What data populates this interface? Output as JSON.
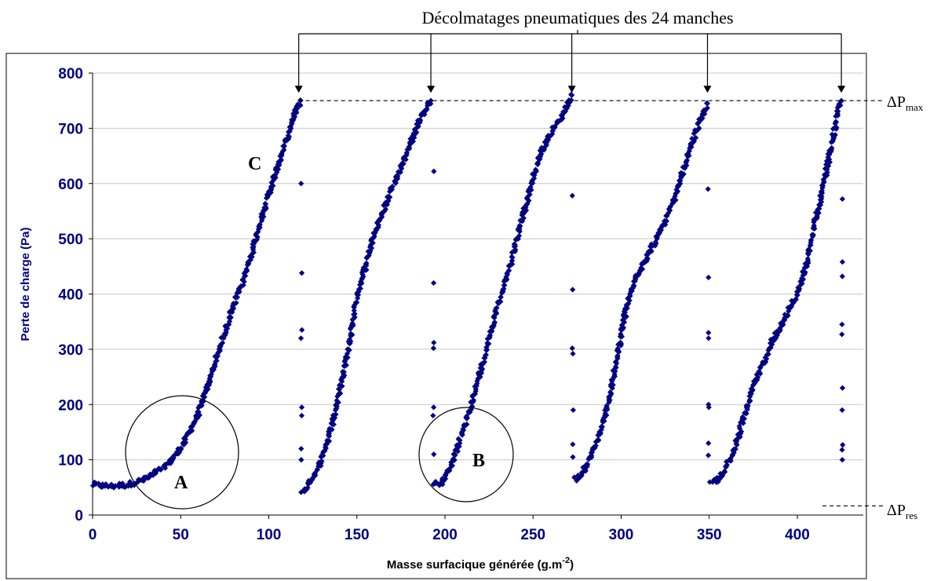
{
  "chart_data": {
    "type": "scatter",
    "title": "Décolmatages pneumatiques des 24 manches",
    "xlabel": "Masse surfacique générée (g.m",
    "xlabel_sup": "-2",
    "xlabel_end": ")",
    "ylabel": "Perte de charge (Pa)",
    "xlim": [
      0,
      440
    ],
    "ylim": [
      0,
      800
    ],
    "x_ticks": [
      0,
      50,
      100,
      150,
      200,
      250,
      300,
      350,
      400
    ],
    "y_ticks": [
      0,
      100,
      200,
      300,
      400,
      500,
      600,
      700,
      800
    ],
    "grid": "horizontal",
    "marker_color": "#000080",
    "dpmax_value": 750,
    "dpres_value": 45,
    "labels": {
      "dpmax": "ΔP",
      "dpmax_sub": "max",
      "dpres": "ΔP",
      "dpres_sub": "res",
      "A": "A",
      "B": "B",
      "C": "C"
    },
    "arrow_x": [
      117,
      192,
      272,
      349,
      425
    ],
    "cycles": [
      {
        "points": [
          [
            0,
            55
          ],
          [
            10,
            52
          ],
          [
            20,
            55
          ],
          [
            30,
            65
          ],
          [
            40,
            85
          ],
          [
            45,
            100
          ],
          [
            50,
            120
          ],
          [
            55,
            150
          ],
          [
            60,
            185
          ],
          [
            65,
            230
          ],
          [
            70,
            280
          ],
          [
            75,
            330
          ],
          [
            80,
            380
          ],
          [
            85,
            420
          ],
          [
            90,
            470
          ],
          [
            95,
            530
          ],
          [
            100,
            580
          ],
          [
            105,
            630
          ],
          [
            110,
            680
          ],
          [
            115,
            730
          ],
          [
            118,
            750
          ]
        ]
      },
      {
        "points": [
          [
            119,
            40
          ],
          [
            121,
            50
          ],
          [
            125,
            70
          ],
          [
            130,
            100
          ],
          [
            135,
            150
          ],
          [
            140,
            220
          ],
          [
            145,
            300
          ],
          [
            148,
            350
          ],
          [
            150,
            400
          ],
          [
            155,
            450
          ],
          [
            160,
            510
          ],
          [
            165,
            550
          ],
          [
            170,
            590
          ],
          [
            175,
            630
          ],
          [
            180,
            670
          ],
          [
            185,
            710
          ],
          [
            190,
            740
          ],
          [
            192,
            750
          ]
        ]
      },
      {
        "points": [
          [
            194,
            55
          ],
          [
            198,
            60
          ],
          [
            202,
            80
          ],
          [
            206,
            110
          ],
          [
            210,
            150
          ],
          [
            215,
            200
          ],
          [
            220,
            260
          ],
          [
            225,
            320
          ],
          [
            230,
            380
          ],
          [
            235,
            430
          ],
          [
            240,
            490
          ],
          [
            245,
            550
          ],
          [
            250,
            610
          ],
          [
            255,
            660
          ],
          [
            260,
            690
          ],
          [
            265,
            715
          ],
          [
            270,
            745
          ],
          [
            272,
            760
          ]
        ]
      },
      {
        "points": [
          [
            274,
            65
          ],
          [
            278,
            75
          ],
          [
            282,
            100
          ],
          [
            286,
            130
          ],
          [
            290,
            170
          ],
          [
            294,
            220
          ],
          [
            298,
            290
          ],
          [
            302,
            360
          ],
          [
            306,
            410
          ],
          [
            310,
            440
          ],
          [
            315,
            470
          ],
          [
            320,
            500
          ],
          [
            325,
            530
          ],
          [
            330,
            570
          ],
          [
            335,
            620
          ],
          [
            340,
            670
          ],
          [
            345,
            715
          ],
          [
            349,
            745
          ]
        ]
      },
      {
        "points": [
          [
            351,
            60
          ],
          [
            355,
            65
          ],
          [
            360,
            90
          ],
          [
            364,
            115
          ],
          [
            368,
            160
          ],
          [
            372,
            200
          ],
          [
            376,
            240
          ],
          [
            380,
            270
          ],
          [
            385,
            310
          ],
          [
            390,
            340
          ],
          [
            395,
            370
          ],
          [
            400,
            400
          ],
          [
            405,
            450
          ],
          [
            410,
            530
          ],
          [
            415,
            600
          ],
          [
            420,
            680
          ],
          [
            423,
            730
          ],
          [
            425,
            750
          ]
        ]
      }
    ],
    "drops": [
      {
        "x": 118.5,
        "values": [
          600,
          438,
          335,
          320,
          195,
          180,
          120,
          100
        ]
      },
      {
        "x": 193.5,
        "values": [
          622,
          420,
          312,
          302,
          195,
          180,
          110
        ]
      },
      {
        "x": 272.5,
        "values": [
          578,
          408,
          302,
          292,
          190,
          128,
          105
        ]
      },
      {
        "x": 349.5,
        "values": [
          590,
          430,
          330,
          320,
          200,
          195,
          130,
          108
        ]
      },
      {
        "x": 425.5,
        "values": [
          572,
          458,
          432,
          345,
          327,
          230,
          190,
          127,
          118,
          100
        ]
      }
    ]
  }
}
